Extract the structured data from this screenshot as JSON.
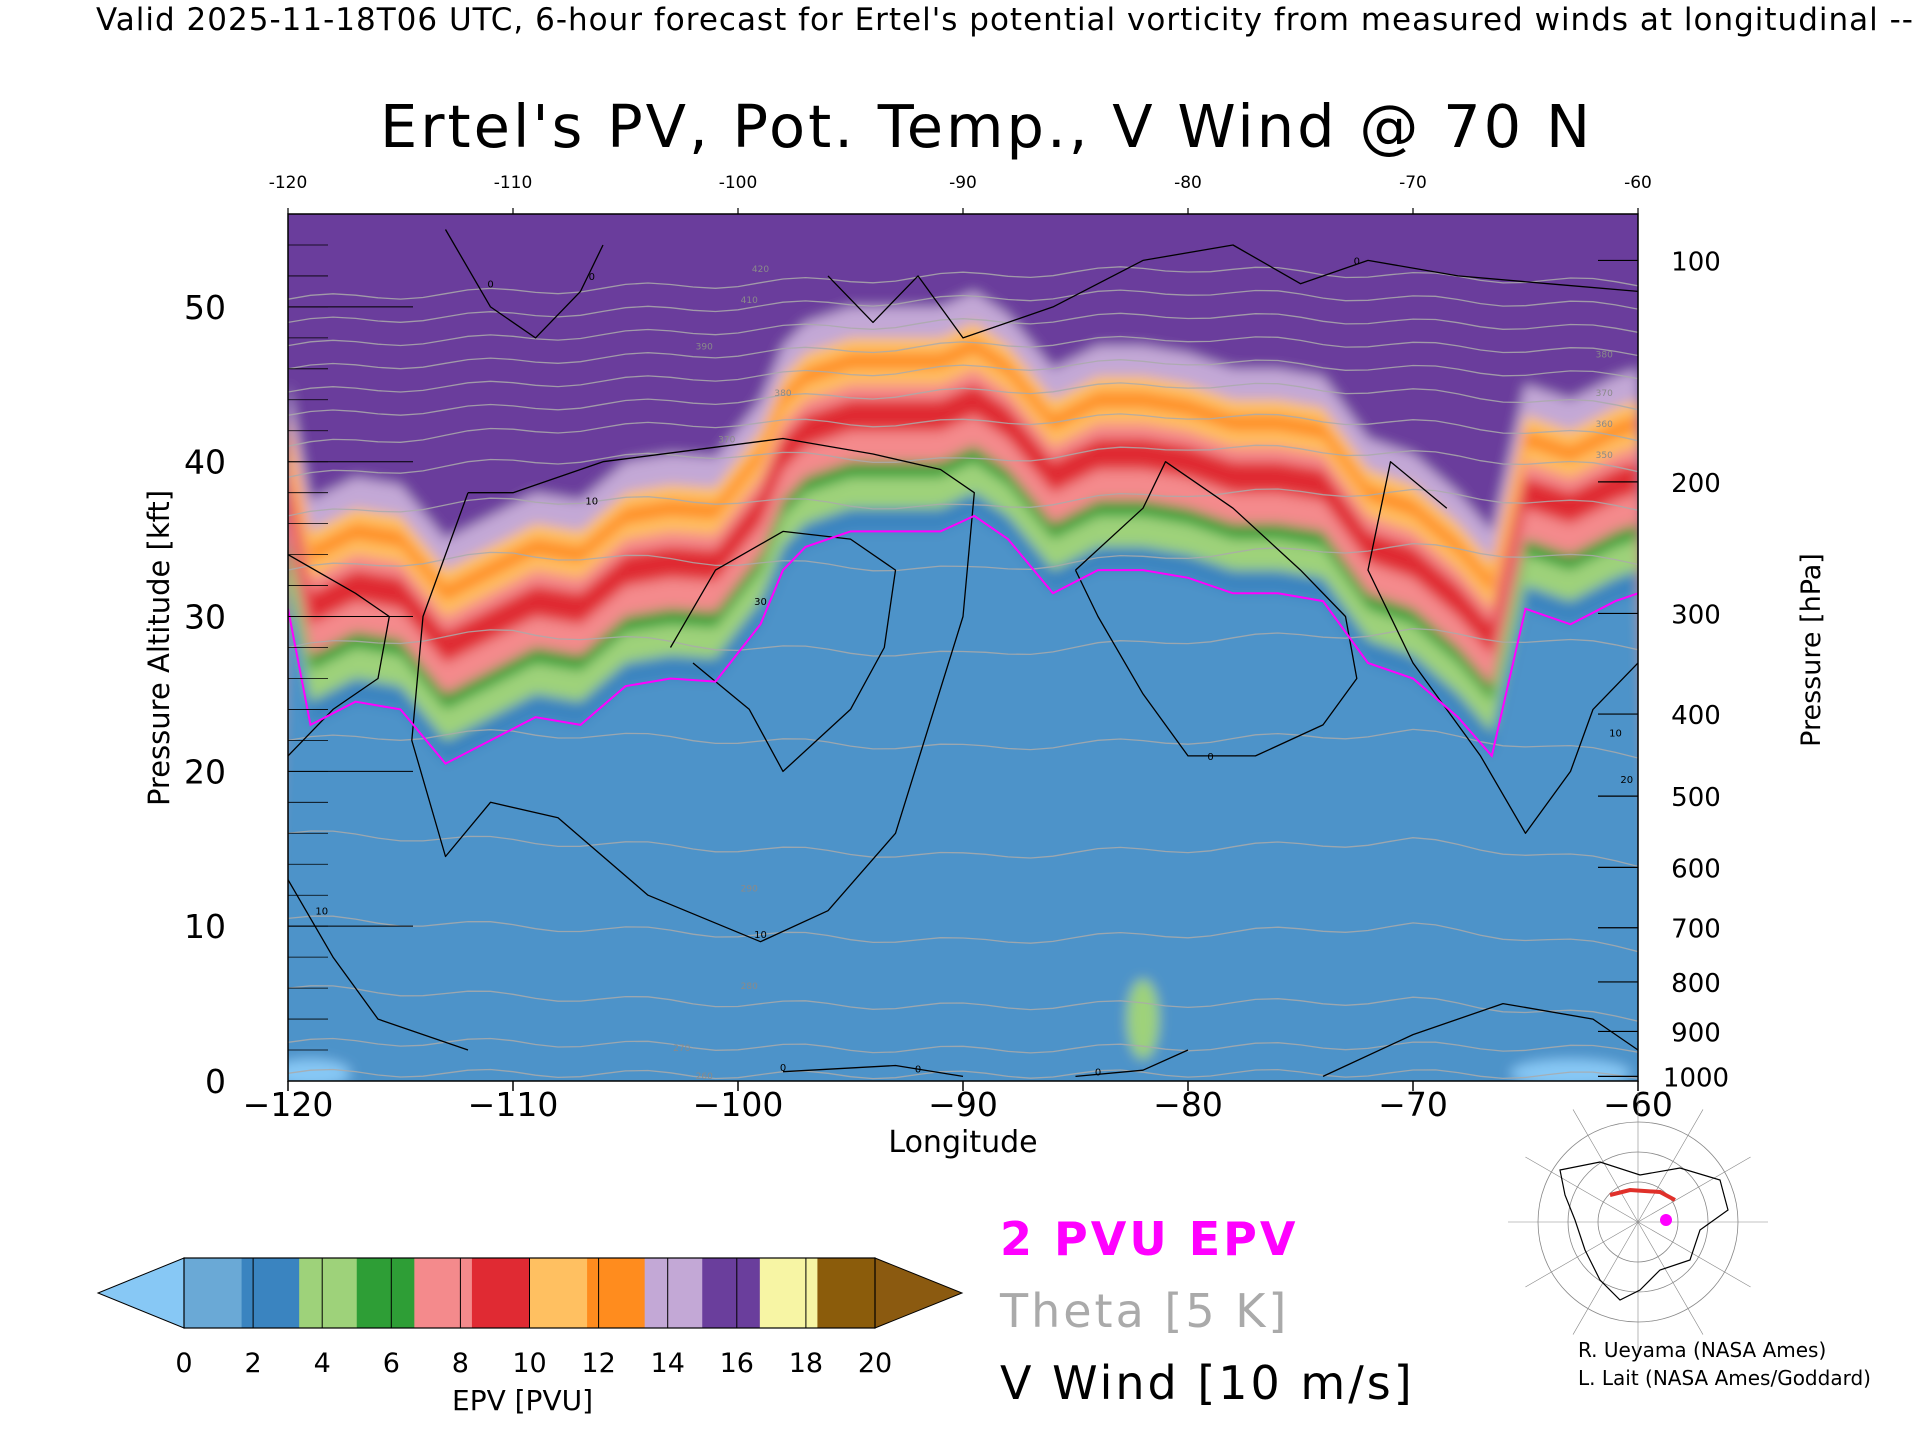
{
  "header": {
    "valid_text": "Valid 2025-11-18T06 UTC, 6-hour forecast for Ertel's potential vorticity from measured winds at longitudinal -- NCE"
  },
  "chart_data": {
    "type": "heatmap",
    "title": "Ertel's PV, Pot. Temp., V Wind @ 70 N",
    "xlabel": "Longitude",
    "ylabel": "Pressure Altitude [kft]",
    "ylabel_right": "Pressure [hPa]",
    "xlim": [
      -120,
      -60
    ],
    "ylim": [
      0,
      56
    ],
    "x_ticks": [
      -120,
      -110,
      -100,
      -90,
      -80,
      -70,
      -60
    ],
    "x_tick_labels": [
      "−120",
      "−110",
      "−100",
      "−90",
      "−80",
      "−70",
      "−60"
    ],
    "top_tick_labels": [
      "-120",
      "-110",
      "-100",
      "-90",
      "-80",
      "-70",
      "-60"
    ],
    "y_ticks": [
      0,
      10,
      20,
      30,
      40,
      50
    ],
    "pressure_ticks": [
      {
        "hPa": 100,
        "label": "100",
        "kft": 53
      },
      {
        "hPa": 200,
        "label": "200",
        "kft": 38.7
      },
      {
        "hPa": 300,
        "label": "300",
        "kft": 30.2
      },
      {
        "hPa": 400,
        "label": "400",
        "kft": 23.7
      },
      {
        "hPa": 500,
        "label": "500",
        "kft": 18.4
      },
      {
        "hPa": 600,
        "label": "600",
        "kft": 13.8
      },
      {
        "hPa": 700,
        "label": "700",
        "kft": 9.9
      },
      {
        "hPa": 800,
        "label": "800",
        "kft": 6.4
      },
      {
        "hPa": 900,
        "label": "900",
        "kft": 3.2
      },
      {
        "hPa": 1000,
        "label": "1000",
        "kft": 0.3
      }
    ],
    "epv_2pvu_height_kft": {
      "lon": [
        -120,
        -119,
        -117,
        -115,
        -113,
        -111,
        -109,
        -107,
        -105,
        -103,
        -101,
        -99,
        -98,
        -97,
        -95,
        -93,
        -91,
        -89.5,
        -88,
        -86,
        -84,
        -82,
        -80,
        -78,
        -76,
        -74,
        -72,
        -70,
        -68,
        -66.5,
        -65,
        -63,
        -61,
        -60
      ],
      "kft": [
        30.5,
        23,
        24.5,
        24,
        20.5,
        22,
        23.5,
        23,
        25.5,
        26,
        25.8,
        29.5,
        33,
        34.5,
        35.5,
        35.5,
        35.5,
        36.5,
        35,
        31.5,
        33,
        33,
        32.5,
        31.5,
        31.5,
        31,
        27,
        26,
        23.5,
        21,
        30.5,
        29.5,
        31,
        31.5
      ]
    },
    "epv_band_offsets_kft": [
      0,
      2,
      4,
      5,
      7,
      9,
      10,
      11,
      12,
      13,
      15
    ],
    "theta_levels_K": [
      260,
      270,
      280,
      290,
      300,
      310,
      320,
      330,
      340,
      350,
      360,
      370,
      380,
      390,
      400,
      410,
      420
    ],
    "theta_height_kft": {
      "260": [
        0.5,
        0.5,
        0.4,
        0.4,
        0.5,
        0.5,
        0.3
      ],
      "270": [
        2.5,
        2.5,
        2.2,
        2.0,
        2.2,
        2.3,
        2.0
      ],
      "280": [
        6.0,
        5.5,
        5.0,
        4.8,
        5.0,
        5.2,
        4.0
      ],
      "290": [
        10.5,
        10.0,
        9.5,
        9.0,
        9.5,
        10.0,
        8.5
      ],
      "300": [
        16.0,
        15.5,
        15.0,
        14.5,
        15.0,
        15.5,
        14.0
      ],
      "310": [
        22.0,
        22.5,
        22.0,
        21.5,
        22.0,
        22.5,
        21.0
      ],
      "320": [
        28.0,
        29.0,
        28.0,
        27.5,
        28.5,
        29.0,
        28.0
      ],
      "330": [
        33.0,
        34.0,
        33.5,
        33.0,
        34.0,
        34.5,
        33.5
      ],
      "340": [
        36.5,
        37.5,
        37.5,
        37.0,
        38.0,
        38.0,
        37.0
      ],
      "350": [
        39.0,
        40.0,
        40.5,
        40.0,
        41.0,
        40.5,
        39.5
      ],
      "360": [
        41.0,
        42.0,
        42.5,
        42.5,
        43.0,
        42.5,
        41.5
      ],
      "370": [
        43.0,
        43.5,
        44.0,
        44.5,
        45.0,
        44.5,
        43.5
      ],
      "380": [
        44.5,
        45.0,
        45.5,
        46.0,
        46.5,
        46.0,
        45.5
      ],
      "390": [
        46.0,
        46.5,
        47.0,
        47.5,
        48.0,
        47.5,
        47.0
      ],
      "400": [
        47.5,
        48.0,
        48.5,
        49.0,
        49.5,
        49.0,
        48.5
      ],
      "410": [
        49.0,
        49.5,
        50.0,
        50.5,
        51.0,
        50.5,
        50.0
      ],
      "420": [
        50.5,
        51.0,
        51.5,
        52.0,
        52.5,
        52.0,
        51.5
      ]
    },
    "theta_x": [
      -120,
      -110,
      -100,
      -90,
      -80,
      -70,
      -60
    ],
    "theta_printed_labels": [
      {
        "text": "260",
        "lon": -101.5,
        "kft": 0.4
      },
      {
        "text": "270",
        "lon": -102.5,
        "kft": 2.2
      },
      {
        "text": "280",
        "lon": -99.5,
        "kft": 6.2
      },
      {
        "text": "290",
        "lon": -99.5,
        "kft": 12.5
      },
      {
        "text": "370",
        "lon": -100.5,
        "kft": 41.5
      },
      {
        "text": "380",
        "lon": -98,
        "kft": 44.5
      },
      {
        "text": "390",
        "lon": -101.5,
        "kft": 47.5
      },
      {
        "text": "410",
        "lon": -99.5,
        "kft": 50.5
      },
      {
        "text": "420",
        "lon": -99,
        "kft": 52.5
      },
      {
        "text": "380",
        "lon": -61.5,
        "kft": 47
      },
      {
        "text": "370",
        "lon": -61.5,
        "kft": 44.5
      },
      {
        "text": "360",
        "lon": -61.5,
        "kft": 42.5
      },
      {
        "text": "350",
        "lon": -61.5,
        "kft": 40.5
      }
    ],
    "vwind_contour_labels": [
      {
        "text": "10",
        "lon": -106.5,
        "kft": 37.5
      },
      {
        "text": "30",
        "lon": -99,
        "kft": 31
      },
      {
        "text": "10",
        "lon": -118.5,
        "kft": 11
      },
      {
        "text": "10",
        "lon": -99,
        "kft": 9.5
      },
      {
        "text": "0",
        "lon": -106.5,
        "kft": 52
      },
      {
        "text": "0",
        "lon": -111,
        "kft": 51.5
      },
      {
        "text": "0",
        "lon": -72.5,
        "kft": 53
      },
      {
        "text": "0",
        "lon": -79,
        "kft": 21
      },
      {
        "text": "0",
        "lon": -98,
        "kft": 0.9
      },
      {
        "text": "0",
        "lon": -92,
        "kft": 0.8
      },
      {
        "text": "0",
        "lon": -84,
        "kft": 0.6
      },
      {
        "text": "10",
        "lon": -61,
        "kft": 22.5
      },
      {
        "text": "20",
        "lon": -60.5,
        "kft": 19.5
      }
    ],
    "colorbar": {
      "label": "EPV [PVU]",
      "ticks": [
        "0",
        "2",
        "4",
        "6",
        "8",
        "10",
        "12",
        "14",
        "16",
        "18",
        "20"
      ],
      "colors": [
        "#6aa9d6",
        "#3a84c0",
        "#9ed27a",
        "#2e9e36",
        "#f48a8c",
        "#e02a33",
        "#ffc061",
        "#ff8c1e",
        "#c3a8d6",
        "#6a3e9c",
        "#f7f5a4",
        "#8b5c0b"
      ],
      "under_color": "#87c8f5",
      "over_color": "#8b5a10"
    },
    "legend": {
      "epv_contour": "2 PVU EPV",
      "theta": "Theta [5 K]",
      "vwind": "V Wind [10 m/s]",
      "epv_color": "#ff00ff",
      "theta_color": "#aaaaaa",
      "vwind_color": "#000000"
    },
    "grid": false
  },
  "credits": {
    "line1": "R. Ueyama (NASA Ames)",
    "line2": "L. Lait (NASA Ames/Goddard)"
  }
}
